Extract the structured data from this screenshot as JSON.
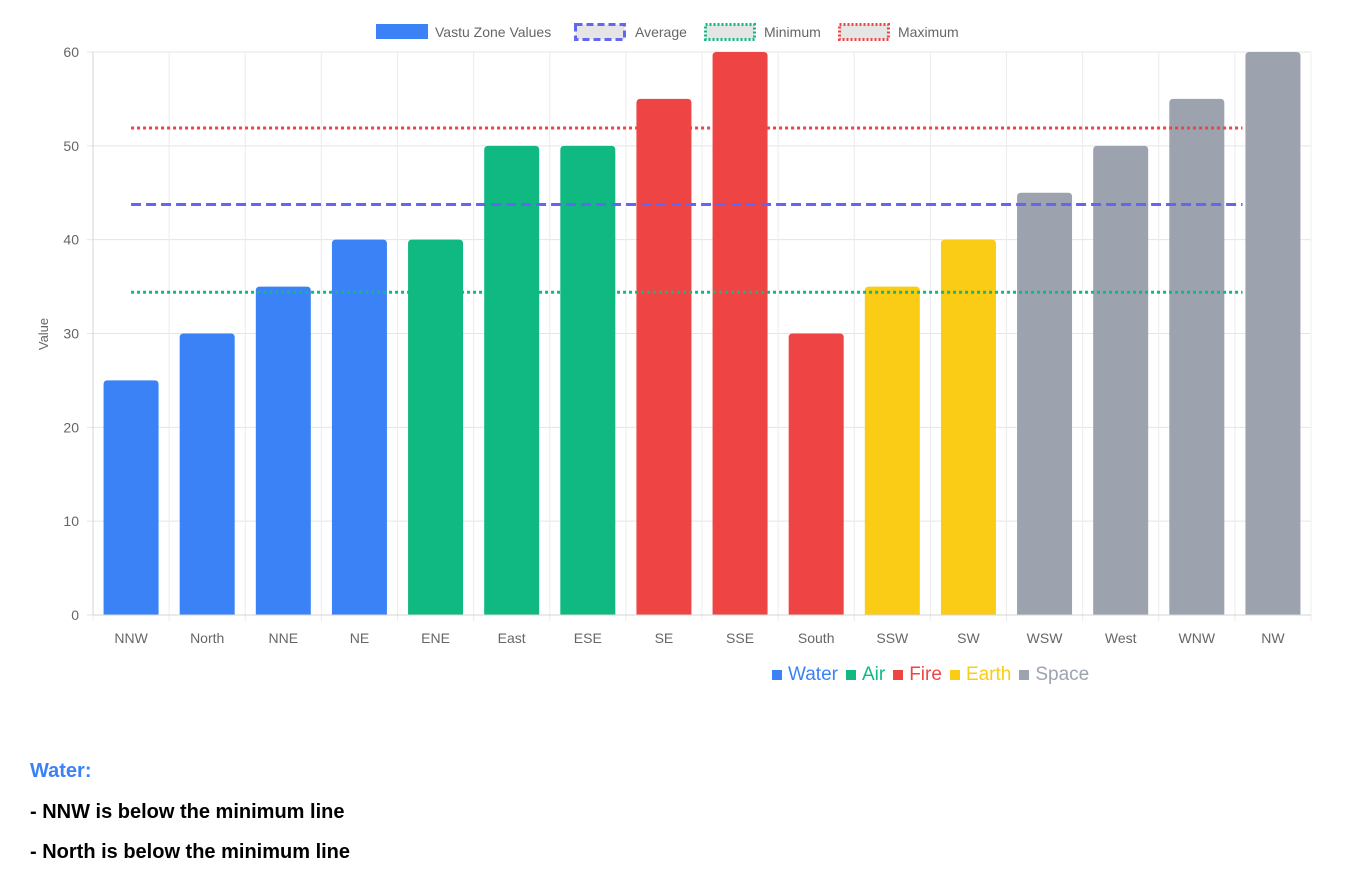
{
  "chart_data": {
    "type": "bar",
    "categories": [
      "NNW",
      "North",
      "NNE",
      "NE",
      "ENE",
      "East",
      "ESE",
      "SE",
      "SSE",
      "South",
      "SSW",
      "SW",
      "WSW",
      "West",
      "WNW",
      "NW"
    ],
    "values": [
      25,
      30,
      35,
      40,
      40,
      50,
      50,
      55,
      60,
      30,
      35,
      40,
      45,
      50,
      55,
      60
    ],
    "bar_elements": [
      "Water",
      "Water",
      "Water",
      "Water",
      "Air",
      "Air",
      "Air",
      "Fire",
      "Fire",
      "Fire",
      "Earth",
      "Earth",
      "Space",
      "Space",
      "Space",
      "Space"
    ],
    "ylabel": "Value",
    "ylim": [
      0,
      60
    ],
    "yticks": [
      0,
      10,
      20,
      30,
      40,
      50,
      60
    ],
    "grid": true,
    "legend_position": "top",
    "series": [
      {
        "name": "Vastu Zone Values",
        "kind": "bar",
        "color": "#3b82f6"
      },
      {
        "name": "Average",
        "kind": "dashed-line",
        "value": 43.75,
        "color": "#6366f1"
      },
      {
        "name": "Minimum",
        "kind": "dotted-line",
        "value": 34.4,
        "color": "#10b981"
      },
      {
        "name": "Maximum",
        "kind": "dotted-line",
        "value": 51.9,
        "color": "#ef4444"
      }
    ]
  },
  "element_legend": [
    {
      "label": "Water",
      "color": "#3b82f6"
    },
    {
      "label": "Air",
      "color": "#10b981"
    },
    {
      "label": "Fire",
      "color": "#ef4444"
    },
    {
      "label": "Earth",
      "color": "#facc15"
    },
    {
      "label": "Space",
      "color": "#9ca3af"
    }
  ],
  "notes": {
    "heading": "Water:",
    "heading_color": "#3b82f6",
    "lines": [
      "- NNW is below the minimum line",
      "- North is below the minimum line"
    ]
  }
}
